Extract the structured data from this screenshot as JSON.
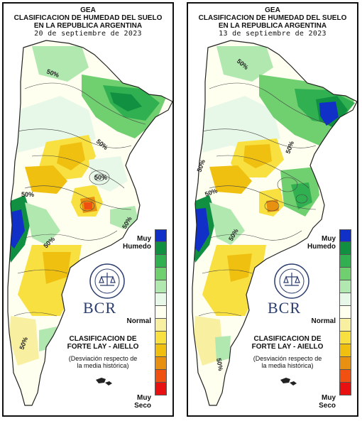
{
  "legend_colors": [
    "#1030c8",
    "#109040",
    "#30b050",
    "#70d070",
    "#b0e8b0",
    "#e8f8e8",
    "#fffff0",
    "#f8f0a0",
    "#f8e040",
    "#f0c010",
    "#e89010",
    "#f05010",
    "#e81010"
  ],
  "panels": [
    {
      "org": "GEA",
      "title_line1": "CLASIFICACION DE HUMEDAD DEL SUELO",
      "title_line2": "EN LA REPUBLICA ARGENTINA",
      "date": "20 de septiembre de 2023",
      "label_muy": "Muy",
      "label_humedo": "Humedo",
      "label_normal": "Normal",
      "label_muy2": "Muy",
      "label_seco": "Seco",
      "clas_line1": "CLASIFICACION DE",
      "clas_line2": "FORTE LAY - AIELLO",
      "desc_line1": "(Desviación respecto de",
      "desc_line2": "la media histórica)",
      "logo_text": "BCR",
      "contour_labels": [
        "50%",
        "50%",
        "50%",
        "50%",
        "50%",
        "50%",
        "50%"
      ]
    },
    {
      "org": "GEA",
      "title_line1": "CLASIFICACION DE HUMEDAD DEL SUELO",
      "title_line2": "EN LA REPUBLICA ARGENTINA",
      "date": "13 de septiembre de 2023",
      "label_muy": "Muy",
      "label_humedo": "Humedo",
      "label_normal": "Normal",
      "label_muy2": "Muy",
      "label_seco": "Seco",
      "clas_line1": "CLASIFICACION DE",
      "clas_line2": "FORTE LAY - AIELLO",
      "desc_line1": "(Desviación respecto de",
      "desc_line2": "la media histórica)",
      "logo_text": "BCR",
      "contour_labels": [
        "50%",
        "50%",
        "50%",
        "50%",
        "50%",
        "50%"
      ]
    }
  ]
}
